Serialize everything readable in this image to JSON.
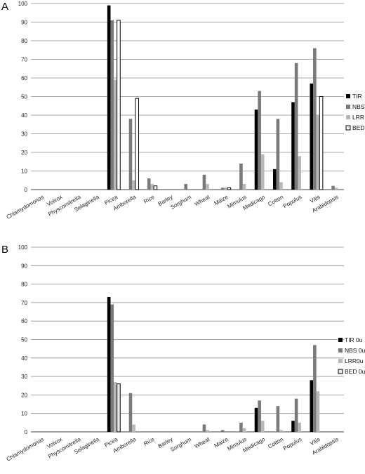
{
  "chart_data": [
    {
      "type": "bar",
      "panel": "A",
      "title": "",
      "xlabel": "",
      "ylabel": "",
      "ylim": [
        0,
        100
      ],
      "yticks": [
        "0",
        "10",
        "20",
        "30",
        "40",
        "50",
        "60",
        "70",
        "80",
        "90",
        "100"
      ],
      "grid": true,
      "legend_position": "right",
      "categories": [
        "Chlamydomonas",
        "Volvox",
        "Physcomitrella",
        "Selaginella",
        "Picea",
        "Amborella",
        "Rice",
        "Barley",
        "Sorghum",
        "Wheat",
        "Maize",
        "Mimulus",
        "Medicago",
        "Cotton",
        "Populus",
        "Vitis",
        "Arabidopsis"
      ],
      "series": [
        {
          "name": "TIR",
          "color": "#000000",
          "values": [
            0,
            0,
            0,
            0,
            99,
            0,
            0,
            0,
            0,
            0,
            0,
            0,
            43,
            11,
            47,
            57,
            0
          ]
        },
        {
          "name": "NBS",
          "color": "#7a7a7a",
          "values": [
            0,
            0,
            0,
            0,
            91,
            38,
            6,
            0,
            3,
            8,
            1,
            14,
            53,
            38,
            68,
            76,
            2
          ]
        },
        {
          "name": "LRR",
          "color": "#b8b8b8",
          "values": [
            0,
            0,
            0,
            0,
            59,
            5,
            3,
            0,
            0,
            3,
            1,
            3,
            19,
            4,
            18,
            40,
            1
          ]
        },
        {
          "name": "BED",
          "color": "#ffffff",
          "values": [
            0,
            0,
            0,
            0,
            91,
            49,
            2,
            0,
            0,
            0,
            1,
            0,
            0,
            0,
            0,
            50,
            0
          ]
        }
      ]
    },
    {
      "type": "bar",
      "panel": "B",
      "title": "",
      "xlabel": "",
      "ylabel": "",
      "ylim": [
        0,
        100
      ],
      "yticks": [
        "0",
        "10",
        "20",
        "30",
        "40",
        "50",
        "60",
        "70",
        "80",
        "90",
        "100"
      ],
      "grid": true,
      "legend_position": "right",
      "categories": [
        "Chlamydomonas",
        "Volvox",
        "Physcomitrella",
        "Selaginella",
        "Picea",
        "Amborella",
        "Rice",
        "Barley",
        "Sorghum",
        "Wheat",
        "Maize",
        "Mimulus",
        "Medicago",
        "Cotton",
        "Populus",
        "Vitis",
        "Arabidopsis"
      ],
      "series": [
        {
          "name": "TIR 0u",
          "color": "#000000",
          "values": [
            0,
            0,
            0,
            0,
            73,
            0,
            0,
            0,
            0,
            0,
            0,
            0,
            13,
            0,
            6,
            28,
            0
          ]
        },
        {
          "name": "NBS 0u",
          "color": "#7a7a7a",
          "values": [
            0,
            0,
            0,
            0,
            69,
            21,
            0,
            0,
            0,
            4,
            1,
            5,
            17,
            14,
            18,
            47,
            0
          ]
        },
        {
          "name": "LRR0u",
          "color": "#b8b8b8",
          "values": [
            0,
            0,
            0,
            0,
            27,
            4,
            0,
            0,
            0,
            1,
            0,
            2,
            6,
            1,
            5,
            22,
            0
          ]
        },
        {
          "name": "BED 0u",
          "color": "#e6e6e6",
          "values": [
            0,
            0,
            0,
            0,
            26,
            0,
            0,
            0,
            0,
            0,
            0,
            0,
            0,
            0,
            0,
            0,
            0
          ]
        }
      ]
    }
  ]
}
